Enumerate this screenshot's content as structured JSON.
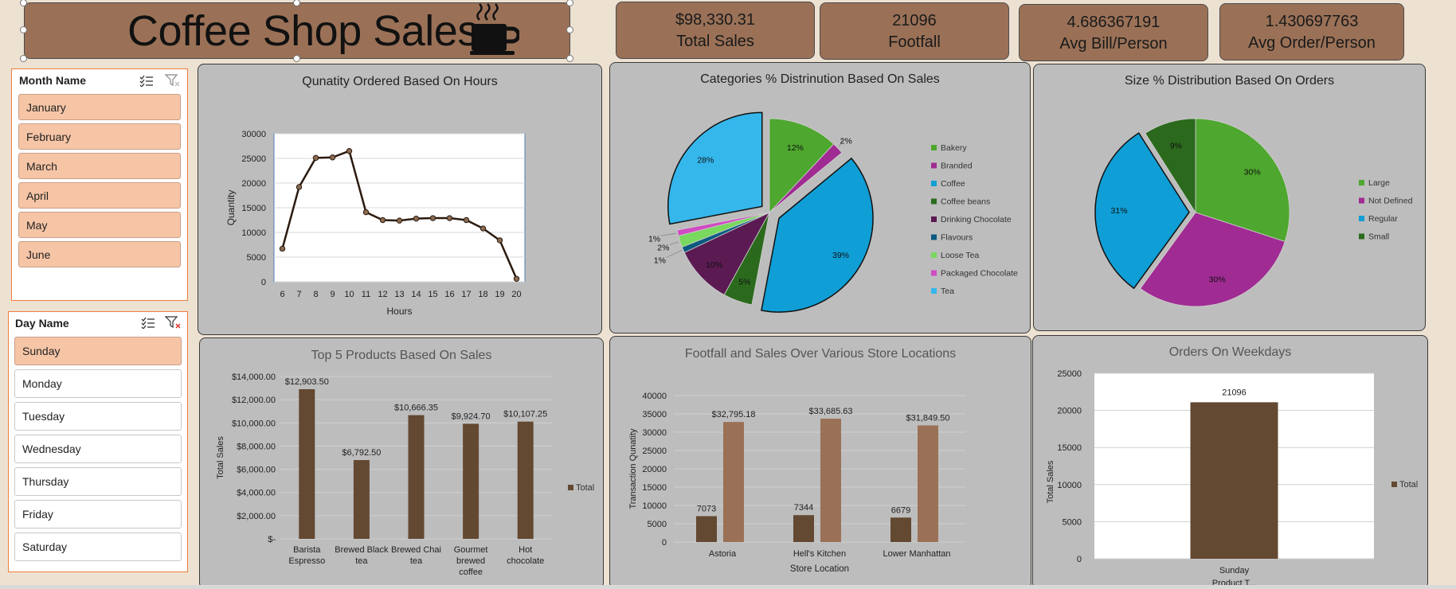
{
  "header": {
    "title": "Coffee Shop Sales"
  },
  "kpis": [
    {
      "value": "$98,330.31",
      "label": "Total Sales"
    },
    {
      "value": "21096",
      "label": "Footfall"
    },
    {
      "value": "4.686367191",
      "label": "Avg Bill/Person"
    },
    {
      "value": "1.430697763",
      "label": "Avg Order/Person"
    }
  ],
  "slicers": {
    "month": {
      "title": "Month Name",
      "items": [
        "January",
        "February",
        "March",
        "April",
        "May",
        "June"
      ]
    },
    "day": {
      "title": "Day Name",
      "items": [
        "Sunday",
        "Monday",
        "Tuesday",
        "Wednesday",
        "Thursday",
        "Friday",
        "Saturday"
      ],
      "selected": "Sunday"
    }
  },
  "colors": {
    "brown_dark": "#634832",
    "brown_light": "#9a7157",
    "panel": "#bdbdbd",
    "slicer_selected": "#f6c5a6"
  },
  "chart_data": [
    {
      "type": "line",
      "title": "Qunatity Ordered Based On Hours",
      "xlabel": "Hours",
      "ylabel": "Quantity",
      "x": [
        6,
        7,
        8,
        9,
        10,
        11,
        12,
        13,
        14,
        15,
        16,
        17,
        18,
        19,
        20
      ],
      "values": [
        6700,
        19200,
        25100,
        25200,
        26500,
        14100,
        12500,
        12400,
        12800,
        12900,
        12900,
        12500,
        10800,
        8400,
        600
      ],
      "ylim": [
        0,
        30000
      ],
      "yticks": [
        "0",
        "5000",
        "10000",
        "15000",
        "20000",
        "25000",
        "30000"
      ]
    },
    {
      "type": "pie",
      "title": "Categories % Distrinution Based On Sales",
      "legend_position": "right",
      "labels": [
        "Bakery",
        "Branded",
        "Coffee",
        "Coffee beans",
        "Drinking Chocolate",
        "Flavours",
        "Loose Tea",
        "Packaged Chocolate",
        "Tea"
      ],
      "values": [
        12,
        2,
        39,
        5,
        10,
        1,
        2,
        1,
        28
      ],
      "value_labels": [
        "12%",
        "2%",
        "39%",
        "5%",
        "10%",
        "1%",
        "2%",
        "1%",
        "28%"
      ],
      "colors": [
        "#4ea72e",
        "#a02b93",
        "#0f9ed5",
        "#2b6a1d",
        "#5b1a52",
        "#0b5a80",
        "#79d85e",
        "#d04cc2",
        "#35b7ec"
      ]
    },
    {
      "type": "pie",
      "title": "Size % Distribution Based On Orders",
      "legend_position": "right",
      "labels": [
        "Large",
        "Not Defined",
        "Regular",
        "Small"
      ],
      "values": [
        30,
        30,
        31,
        9
      ],
      "value_labels": [
        "30%",
        "30%",
        "31%",
        "9%"
      ],
      "colors": [
        "#4ea72e",
        "#a02b93",
        "#0f9ed5",
        "#2b6a1d"
      ]
    },
    {
      "type": "bar",
      "title": "Top 5  Products Based On Sales",
      "ylabel": "Total Sales",
      "categories": [
        [
          "Barista",
          "Espresso"
        ],
        [
          "Brewed Black",
          "tea"
        ],
        [
          "Brewed Chai",
          "tea"
        ],
        [
          "Gourmet",
          "brewed",
          "coffee"
        ],
        [
          "Hot",
          "chocolate"
        ]
      ],
      "values": [
        12903.5,
        6792.5,
        10666.35,
        9924.7,
        10107.25
      ],
      "value_labels": [
        "$12,903.50",
        "$6,792.50",
        "$10,666.35",
        "$9,924.70",
        "$10,107.25"
      ],
      "ylim": [
        0,
        14000
      ],
      "yticks": [
        "$-",
        "$2,000.00",
        "$4,000.00",
        "$6,000.00",
        "$8,000.00",
        "$10,000.00",
        "$12,000.00",
        "$14,000.00"
      ],
      "series": [
        {
          "name": "Total",
          "color": "#634832"
        }
      ]
    },
    {
      "type": "bar",
      "title": "Footfall and Sales Over Various Store Locations",
      "xlabel": "Store Location",
      "ylabel": "Transaction Qunatity",
      "categories": [
        "Astoria",
        "Hell's Kitchen",
        "Lower Manhattan"
      ],
      "ylim": [
        0,
        40000
      ],
      "yticks": [
        "0",
        "5000",
        "10000",
        "15000",
        "20000",
        "25000",
        "30000",
        "35000",
        "40000"
      ],
      "series": [
        {
          "values": [
            7073,
            7344,
            6679
          ],
          "value_labels": [
            "7073",
            "7344",
            "6679"
          ],
          "color": "#634832"
        },
        {
          "values": [
            32795.18,
            33685.63,
            31849.5
          ],
          "value_labels": [
            "$32,795.18",
            "$33,685.63",
            "$31,849.50"
          ],
          "color": "#9a7157"
        }
      ]
    },
    {
      "type": "bar",
      "title": "Orders On Weekdays",
      "ylabel": "Total Sales",
      "xlabel_partial": "Product T...",
      "categories": [
        "Sunday"
      ],
      "values": [
        21096
      ],
      "value_labels": [
        "21096"
      ],
      "ylim": [
        0,
        25000
      ],
      "yticks": [
        "0",
        "5000",
        "10000",
        "15000",
        "20000",
        "25000"
      ],
      "series": [
        {
          "name": "Total",
          "color": "#634832"
        }
      ]
    }
  ]
}
